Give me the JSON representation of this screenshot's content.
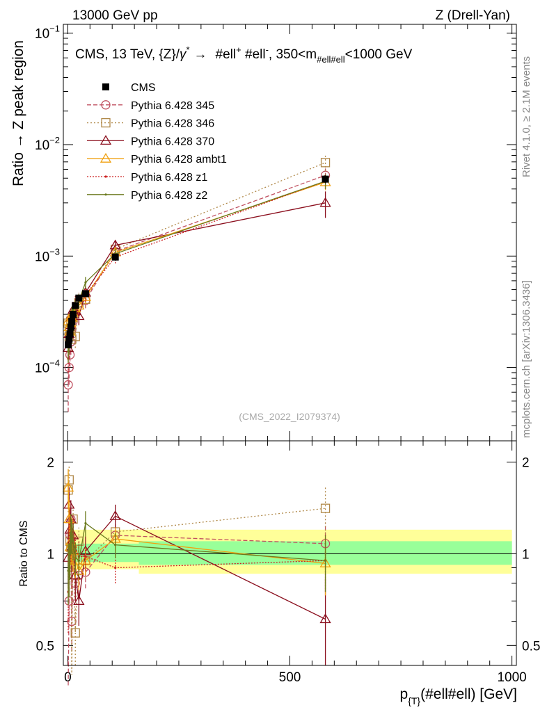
{
  "header": {
    "left": "13000 GeV pp",
    "right": "Z (Drell-Yan)"
  },
  "side_labels": {
    "rivet": "Rivet 4.1.0, ≥ 2.1M events",
    "site": "mcplots.cern.ch [arXiv:1306.3436]"
  },
  "chart_data": [
    {
      "type": "line",
      "panel": "main",
      "title": "CMS, 13 TeV, {Z}/γ* → #ell⁺ #ell⁻, 350<m#ell#ell<1000 GeV",
      "title_parts": {
        "a": "CMS, 13 TeV, {Z}/",
        "gamma": "γ",
        "star": "*",
        "arrow": "→",
        "b": "#ell",
        "plus": "+",
        "c": " #ell",
        "minus": "-",
        "d": ", 350<m",
        "sub": "#ell#ell",
        "e": "<1000 GeV"
      },
      "watermark": "(CMS_2022_I2079374)",
      "ylabel": "Ratio → Z peak region",
      "yscale": "log",
      "ylim": [
        2.2e-05,
        0.12
      ],
      "xlim": [
        -10,
        1010
      ],
      "yticks": [
        {
          "v": 0.0001,
          "base": "10",
          "exp": "−4"
        },
        {
          "v": 0.001,
          "base": "10",
          "exp": "−3"
        },
        {
          "v": 0.01,
          "base": "10",
          "exp": "−2"
        },
        {
          "v": 0.1,
          "base": "10",
          "exp": "−1"
        }
      ],
      "x": [
        1,
        3,
        5,
        7,
        9,
        12,
        17,
        25,
        40,
        107,
        580
      ],
      "series": [
        {
          "name": "CMS",
          "color": "#000000",
          "marker": "square-filled",
          "dash": "none",
          "values": [
            0.00016,
            0.00018,
            0.0002,
            0.00023,
            0.00026,
            0.0003,
            0.00036,
            0.00042,
            0.00046,
            0.00098,
            0.0049
          ],
          "errors": [
            1e-05,
            1e-05,
            1e-05,
            1.2e-05,
            1.4e-05,
            1.6e-05,
            2e-05,
            2.5e-05,
            3e-05,
            7e-05,
            0.0004
          ]
        },
        {
          "name": "Pythia 6.428 345",
          "color": "#c05060",
          "marker": "circle",
          "dash": "6,3",
          "values": [
            7e-05,
            0.0001,
            0.00013,
            0.00017,
            0.00022,
            0.00026,
            0.0003,
            0.00038,
            0.0004,
            0.0011,
            0.0053
          ],
          "errors": [
            3e-05,
            3e-05,
            3e-05,
            4e-05,
            5e-05,
            5e-05,
            6e-05,
            6e-05,
            6e-05,
            0.00012,
            0.0008
          ]
        },
        {
          "name": "Pythia 6.428 346",
          "color": "#b08848",
          "marker": "square",
          "dash": "2,3",
          "values": [
            0.00025,
            0.00019,
            0.00022,
            0.00026,
            0.00018,
            0.00028,
            0.00019,
            0.00038,
            0.00041,
            0.00115,
            0.0069
          ],
          "errors": [
            5e-05,
            4e-05,
            4e-05,
            5e-05,
            4e-05,
            5e-05,
            4e-05,
            6e-05,
            6e-05,
            0.00012,
            0.0011
          ]
        },
        {
          "name": "Pythia 6.428 370",
          "color": "#8b0f1e",
          "marker": "triangle",
          "dash": "none",
          "values": [
            0.00015,
            0.0002,
            0.00024,
            0.00028,
            0.0003,
            0.00033,
            0.00032,
            0.00029,
            0.00047,
            0.00125,
            0.003
          ],
          "errors": [
            3e-05,
            4e-05,
            4e-05,
            5e-05,
            5e-05,
            5e-05,
            5e-05,
            5e-05,
            7e-05,
            0.00014,
            0.0008
          ]
        },
        {
          "name": "Pythia 6.428 ambt1",
          "color": "#f0a010",
          "marker": "triangle",
          "dash": "none",
          "values": [
            0.00026,
            0.00023,
            0.00021,
            0.00025,
            0.00028,
            0.00031,
            0.00034,
            0.00036,
            0.00043,
            0.00108,
            0.0046
          ],
          "errors": [
            4e-05,
            4e-05,
            4e-05,
            4e-05,
            5e-05,
            5e-05,
            5e-05,
            5e-05,
            6e-05,
            0.00012,
            0.0007
          ]
        },
        {
          "name": "Pythia 6.428 z1",
          "color": "#cc2222",
          "marker": "dot",
          "dash": "2,2",
          "values": [
            0.00012,
            0.00019,
            0.00023,
            0.00026,
            0.0003,
            0.00035,
            0.00038,
            0.00041,
            0.00045,
            0.00098,
            0.0047
          ],
          "errors": [
            3e-05,
            4e-05,
            4e-05,
            5e-05,
            5e-05,
            5e-05,
            6e-05,
            6e-05,
            6e-05,
            0.00012,
            0.0007
          ]
        },
        {
          "name": "Pythia 6.428 z2",
          "color": "#6b7a1e",
          "marker": "dot",
          "dash": "none",
          "values": [
            0.00014,
            0.00016,
            0.0002,
            0.00027,
            0.0003,
            0.00033,
            0.00035,
            0.0004,
            0.00058,
            0.00105,
            0.0047
          ],
          "errors": [
            3e-05,
            3e-05,
            4e-05,
            5e-05,
            5e-05,
            5e-05,
            5e-05,
            6e-05,
            7e-05,
            0.00012,
            0.0007
          ]
        }
      ]
    },
    {
      "type": "line",
      "panel": "ratio",
      "ylabel": "Ratio to CMS",
      "xlabel": "p{T}(#ell#ell) [GeV]",
      "xlabel_parts": {
        "p": "p",
        "sub": "{T}",
        "rest": "(#ell#ell) [GeV]"
      },
      "yscale": "log",
      "ylim": [
        0.43,
        2.35
      ],
      "xlim": [
        -10,
        1010
      ],
      "yticks": [
        {
          "v": 0.5,
          "label": "0.5"
        },
        {
          "v": 1,
          "label": "1"
        },
        {
          "v": 2,
          "label": "2"
        }
      ],
      "xticks": [
        {
          "v": 0,
          "label": "0"
        },
        {
          "v": 500,
          "label": "500"
        },
        {
          "v": 1000,
          "label": "1000"
        }
      ],
      "bands": [
        {
          "name": "outer",
          "color": "#ffff99",
          "segments": [
            [
              0,
              160,
              0.89,
              1.2
            ],
            [
              160,
              1000,
              0.86,
              1.2
            ]
          ]
        },
        {
          "name": "inner",
          "color": "#99ff99",
          "segments": [
            [
              0,
              160,
              0.94,
              1.08
            ],
            [
              160,
              1000,
              0.92,
              1.1
            ]
          ]
        }
      ],
      "series": [
        {
          "name": "Pythia 6.428 345",
          "color": "#c05060",
          "marker": "circle",
          "dash": "6,3",
          "values": [
            0.37,
            0.7,
            1.15,
            1.3,
            0.6,
            1.0,
            0.8,
            0.85,
            0.87,
            1.15,
            1.08
          ],
          "errors": [
            0.08,
            0.1,
            0.15,
            0.15,
            0.12,
            0.12,
            0.1,
            0.1,
            0.1,
            0.1,
            0.18
          ]
        },
        {
          "name": "Pythia 6.428 346",
          "color": "#b08848",
          "marker": "square",
          "dash": "2,3",
          "values": [
            1.62,
            1.75,
            1.1,
            1.05,
            0.4,
            1.3,
            0.55,
            1.1,
            0.95,
            1.18,
            1.41
          ],
          "errors": [
            0.25,
            0.2,
            0.2,
            0.18,
            0.15,
            0.15,
            0.12,
            0.12,
            0.12,
            0.12,
            0.25
          ]
        },
        {
          "name": "Pythia 6.428 370",
          "color": "#8b0f1e",
          "marker": "triangle",
          "dash": "none",
          "values": [
            0.97,
            1.45,
            1.2,
            1.3,
            1.05,
            1.15,
            0.85,
            0.7,
            1.02,
            1.33,
            0.61
          ],
          "errors": [
            0.2,
            0.2,
            0.2,
            0.2,
            0.18,
            0.15,
            0.15,
            0.12,
            0.12,
            0.12,
            0.22
          ]
        },
        {
          "name": "Pythia 6.428 ambt1",
          "color": "#f0a010",
          "marker": "triangle",
          "dash": "none",
          "values": [
            1.65,
            1.3,
            1.05,
            1.1,
            1.08,
            1.02,
            0.95,
            0.88,
            0.95,
            1.12,
            0.93
          ],
          "errors": [
            0.25,
            0.2,
            0.18,
            0.18,
            0.15,
            0.15,
            0.12,
            0.12,
            0.1,
            0.1,
            0.2
          ]
        },
        {
          "name": "Pythia 6.428 z1",
          "color": "#cc2222",
          "marker": "dot",
          "dash": "2,2",
          "values": [
            0.75,
            1.05,
            1.15,
            1.12,
            1.15,
            1.18,
            1.05,
            0.98,
            0.98,
            0.9,
            0.95
          ],
          "errors": [
            0.2,
            0.2,
            0.18,
            0.18,
            0.15,
            0.15,
            0.12,
            0.12,
            0.1,
            0.1,
            0.2
          ]
        },
        {
          "name": "Pythia 6.428 z2",
          "color": "#6b7a1e",
          "marker": "dot",
          "dash": "none",
          "values": [
            0.88,
            0.9,
            1.0,
            1.17,
            1.15,
            1.1,
            0.97,
            0.95,
            1.26,
            1.07,
            0.95
          ],
          "errors": [
            0.2,
            0.18,
            0.18,
            0.18,
            0.15,
            0.15,
            0.12,
            0.12,
            0.12,
            0.1,
            0.2
          ]
        }
      ]
    }
  ]
}
